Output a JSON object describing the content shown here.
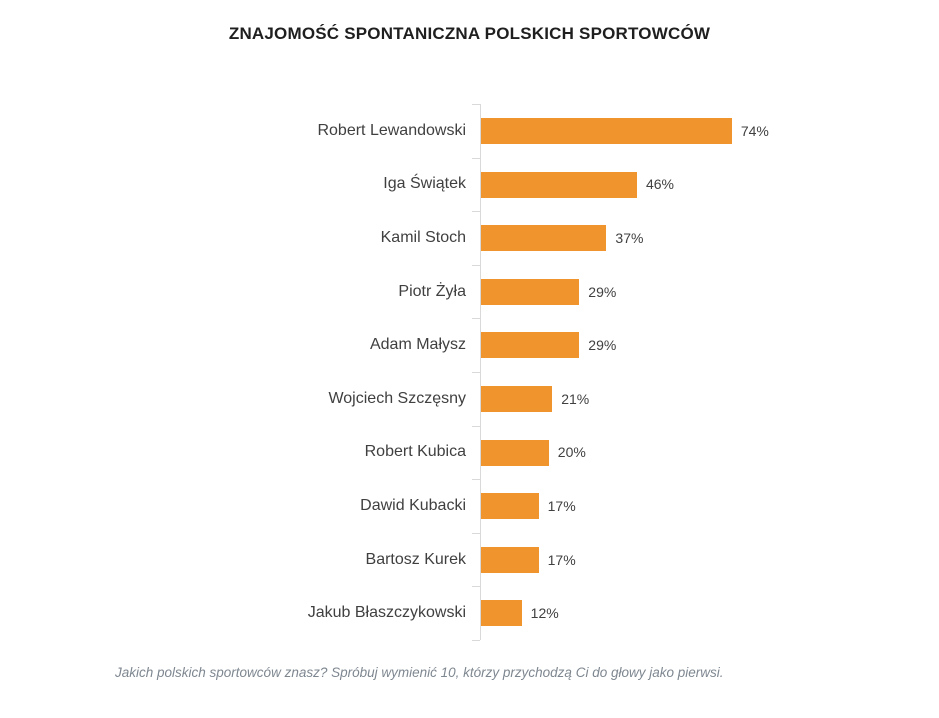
{
  "title": "ZNAJOMOŚĆ SPONTANICZNA POLSKICH SPORTOWCÓW",
  "footnote": "Jakich polskich sportowców znasz? Spróbuj wymienić 10, którzy przychodzą Ci do głowy jako pierwsi.",
  "colors": {
    "bar": "#F0952D",
    "axis": "#D9D9D9",
    "label_text": "#404040",
    "title_text": "#1F1F1F",
    "footnote_text": "#7E8790",
    "background": "#FFFFFF"
  },
  "chart_data": {
    "type": "bar",
    "orientation": "horizontal",
    "title": "ZNAJOMOŚĆ SPONTANICZNA POLSKICH SPORTOWCÓW",
    "xlabel": "",
    "ylabel": "",
    "categories": [
      "Robert Lewandowski",
      "Iga Świątek",
      "Kamil Stoch",
      "Piotr Żyła",
      "Adam Małysz",
      "Wojciech Szczęsny",
      "Robert Kubica",
      "Dawid Kubacki",
      "Bartosz Kurek",
      "Jakub Błaszczykowski"
    ],
    "values": [
      74,
      46,
      37,
      29,
      29,
      21,
      20,
      17,
      17,
      12
    ],
    "data_labels": [
      "74%",
      "46%",
      "37%",
      "29%",
      "29%",
      "21%",
      "20%",
      "17%",
      "17%",
      "12%"
    ],
    "value_suffix": "%",
    "xlim": [
      0,
      100
    ],
    "grid": false,
    "legend": false
  }
}
